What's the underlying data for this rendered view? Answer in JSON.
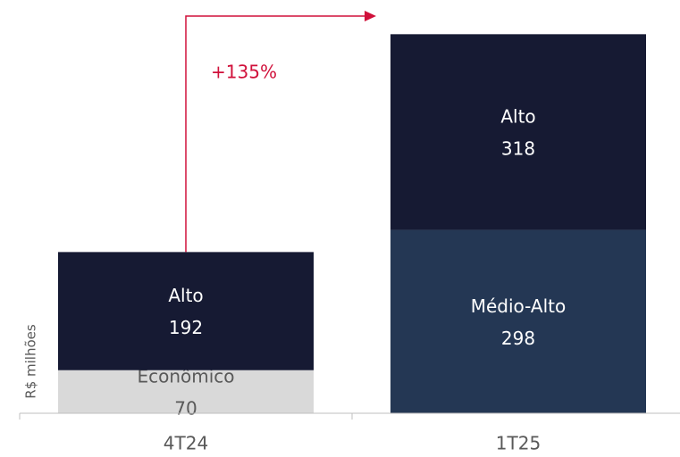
{
  "chart_data": {
    "type": "stacked_bar",
    "categories": [
      "4T24",
      "1T25"
    ],
    "series": [
      {
        "name": "Econômico",
        "color": "#d9d9d9",
        "values": [
          70,
          null
        ]
      },
      {
        "name": "Médio-Alto",
        "color": "#243754",
        "values": [
          null,
          298
        ]
      },
      {
        "name": "Alto",
        "color": "#161a33",
        "values": [
          192,
          318
        ]
      }
    ],
    "ylim": [
      0,
      660
    ],
    "y_label": "R$ milhões",
    "annotation": "+135%",
    "annotation_color": "#d0103a"
  }
}
